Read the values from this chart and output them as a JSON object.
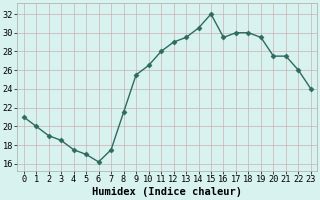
{
  "x": [
    0,
    1,
    2,
    3,
    4,
    5,
    6,
    7,
    8,
    9,
    10,
    11,
    12,
    13,
    14,
    15,
    16,
    17,
    18,
    19,
    20,
    21,
    22,
    23
  ],
  "y": [
    21,
    20,
    19,
    18.5,
    17.5,
    17,
    16.2,
    17.5,
    21.5,
    25.5,
    26.5,
    28,
    29,
    29.5,
    30.5,
    32,
    29.5,
    30,
    30,
    29.5,
    27.5,
    27.5,
    26,
    24
  ],
  "line_color": "#2d6b5e",
  "marker": "D",
  "marker_size": 2.5,
  "bg_color": "#d8f2f0",
  "grid_color_v": "#c9b0b0",
  "grid_color_h": "#c9b0b0",
  "xlabel": "Humidex (Indice chaleur)",
  "xlabel_fontsize": 7.5,
  "ylabel_ticks": [
    16,
    18,
    20,
    22,
    24,
    26,
    28,
    30,
    32
  ],
  "xlim": [
    -0.5,
    23.5
  ],
  "ylim": [
    15.2,
    33.2
  ],
  "tick_fontsize": 6.2,
  "line_width": 1.0
}
